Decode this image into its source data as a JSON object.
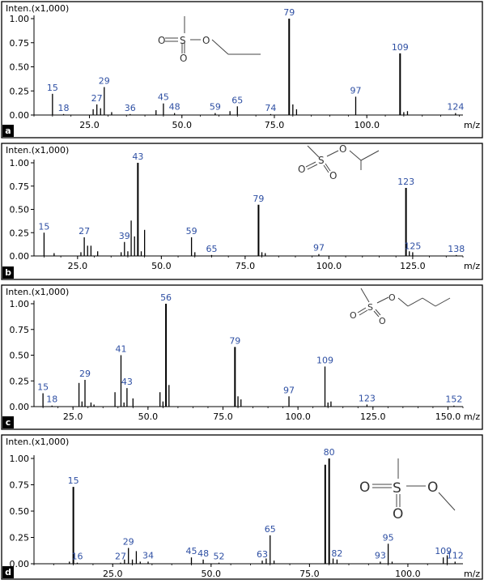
{
  "chart_data": [
    {
      "type": "bar",
      "panel_label": "a",
      "ylabel": "Inten.(x1,000)",
      "xlabel": "m/z",
      "xlim": [
        10,
        126
      ],
      "ylim": [
        0,
        1.0
      ],
      "yticks": [
        "0.00",
        "0.25",
        "0.50",
        "0.75",
        "1.00"
      ],
      "xticks": [
        "25.0",
        "50.0",
        "75.0",
        "100.0"
      ],
      "xtick_values": [
        25,
        50,
        75,
        100
      ],
      "structure": "methyl-ethyl-sulfonate",
      "peaks": [
        {
          "mz": 15,
          "i": 0.22,
          "label": "15"
        },
        {
          "mz": 18,
          "i": 0.01,
          "label": "18"
        },
        {
          "mz": 26,
          "i": 0.06
        },
        {
          "mz": 27,
          "i": 0.11,
          "label": "27"
        },
        {
          "mz": 28,
          "i": 0.07
        },
        {
          "mz": 29,
          "i": 0.29,
          "label": "29"
        },
        {
          "mz": 31,
          "i": 0.03
        },
        {
          "mz": 36,
          "i": 0.01,
          "label": "36"
        },
        {
          "mz": 43,
          "i": 0.05
        },
        {
          "mz": 45,
          "i": 0.12,
          "label": "45"
        },
        {
          "mz": 48,
          "i": 0.02,
          "label": "48"
        },
        {
          "mz": 59,
          "i": 0.02,
          "label": "59"
        },
        {
          "mz": 63,
          "i": 0.04
        },
        {
          "mz": 65,
          "i": 0.09,
          "label": "65"
        },
        {
          "mz": 74,
          "i": 0.01,
          "label": "74"
        },
        {
          "mz": 79,
          "i": 1.0,
          "label": "79"
        },
        {
          "mz": 80,
          "i": 0.11
        },
        {
          "mz": 81,
          "i": 0.06
        },
        {
          "mz": 97,
          "i": 0.19,
          "label": "97"
        },
        {
          "mz": 109,
          "i": 0.64,
          "label": "109"
        },
        {
          "mz": 110,
          "i": 0.03
        },
        {
          "mz": 111,
          "i": 0.04
        },
        {
          "mz": 124,
          "i": 0.02,
          "label": "124"
        }
      ]
    },
    {
      "type": "bar",
      "panel_label": "b",
      "ylabel": "Inten.(x1,000)",
      "xlabel": "m/z",
      "xlim": [
        12,
        140
      ],
      "ylim": [
        0,
        1.0
      ],
      "yticks": [
        "0.00",
        "0.25",
        "0.50",
        "0.75",
        "1.00"
      ],
      "xticks": [
        "25.0",
        "50.0",
        "75.0",
        "100.0",
        "125.0"
      ],
      "xtick_values": [
        25,
        50,
        75,
        100,
        125
      ],
      "structure": "methyl-isopropyl-sulfonate",
      "peaks": [
        {
          "mz": 15,
          "i": 0.25,
          "label": "15"
        },
        {
          "mz": 18,
          "i": 0.03
        },
        {
          "mz": 26,
          "i": 0.04
        },
        {
          "mz": 27,
          "i": 0.2,
          "label": "27"
        },
        {
          "mz": 28,
          "i": 0.11
        },
        {
          "mz": 29,
          "i": 0.11
        },
        {
          "mz": 31,
          "i": 0.05
        },
        {
          "mz": 38,
          "i": 0.04
        },
        {
          "mz": 39,
          "i": 0.15,
          "label": "39"
        },
        {
          "mz": 40,
          "i": 0.05
        },
        {
          "mz": 41,
          "i": 0.38
        },
        {
          "mz": 42,
          "i": 0.21
        },
        {
          "mz": 43,
          "i": 1.0,
          "label": "43"
        },
        {
          "mz": 44,
          "i": 0.05
        },
        {
          "mz": 45,
          "i": 0.28
        },
        {
          "mz": 59,
          "i": 0.2,
          "label": "59"
        },
        {
          "mz": 60,
          "i": 0.04
        },
        {
          "mz": 65,
          "i": 0.01,
          "label": "65"
        },
        {
          "mz": 79,
          "i": 0.55,
          "label": "79"
        },
        {
          "mz": 80,
          "i": 0.04
        },
        {
          "mz": 81,
          "i": 0.03
        },
        {
          "mz": 97,
          "i": 0.02,
          "label": "97"
        },
        {
          "mz": 123,
          "i": 0.73,
          "label": "123"
        },
        {
          "mz": 124,
          "i": 0.05
        },
        {
          "mz": 125,
          "i": 0.04,
          "label": "125"
        },
        {
          "mz": 138,
          "i": 0.01,
          "label": "138"
        }
      ]
    },
    {
      "type": "bar",
      "panel_label": "c",
      "ylabel": "Inten.(x1,000)",
      "xlabel": "m/z",
      "xlim": [
        12,
        155
      ],
      "ylim": [
        0,
        1.0
      ],
      "yticks": [
        "0.00",
        "0.25",
        "0.50",
        "0.75",
        "1.00"
      ],
      "xticks": [
        "25.0",
        "50.0",
        "75.0",
        "100.0",
        "125.0",
        "150.0"
      ],
      "xtick_values": [
        25,
        50,
        75,
        100,
        125,
        150
      ],
      "structure": "methyl-butyl-sulfonate",
      "peaks": [
        {
          "mz": 15,
          "i": 0.13,
          "label": "15"
        },
        {
          "mz": 18,
          "i": 0.01,
          "label": "18"
        },
        {
          "mz": 27,
          "i": 0.23
        },
        {
          "mz": 28,
          "i": 0.05
        },
        {
          "mz": 29,
          "i": 0.26,
          "label": "29"
        },
        {
          "mz": 31,
          "i": 0.04
        },
        {
          "mz": 32,
          "i": 0.02
        },
        {
          "mz": 39,
          "i": 0.14
        },
        {
          "mz": 41,
          "i": 0.5,
          "label": "41"
        },
        {
          "mz": 42,
          "i": 0.04
        },
        {
          "mz": 43,
          "i": 0.18,
          "label": "43"
        },
        {
          "mz": 45,
          "i": 0.08
        },
        {
          "mz": 54,
          "i": 0.14
        },
        {
          "mz": 55,
          "i": 0.05
        },
        {
          "mz": 56,
          "i": 1.0,
          "label": "56"
        },
        {
          "mz": 57,
          "i": 0.21
        },
        {
          "mz": 79,
          "i": 0.58,
          "label": "79"
        },
        {
          "mz": 80,
          "i": 0.1
        },
        {
          "mz": 81,
          "i": 0.07
        },
        {
          "mz": 97,
          "i": 0.1,
          "label": "97"
        },
        {
          "mz": 109,
          "i": 0.39,
          "label": "109"
        },
        {
          "mz": 110,
          "i": 0.04
        },
        {
          "mz": 111,
          "i": 0.05
        },
        {
          "mz": 123,
          "i": 0.02,
          "label": "123"
        },
        {
          "mz": 152,
          "i": 0.01,
          "label": "152"
        }
      ]
    },
    {
      "type": "bar",
      "panel_label": "d",
      "ylabel": "Inten.(x1,000)",
      "xlabel": "m/z",
      "xlim": [
        5,
        114
      ],
      "ylim": [
        0,
        1.0
      ],
      "yticks": [
        "0.00",
        "0.25",
        "0.50",
        "0.75",
        "1.00"
      ],
      "xticks": [
        "25.0",
        "50.0",
        "75.0",
        "100.0"
      ],
      "xtick_values": [
        25,
        50,
        75,
        100
      ],
      "structure": "dimethyl-sulfonate",
      "peaks": [
        {
          "mz": 14,
          "i": 0.02
        },
        {
          "mz": 15,
          "i": 0.73,
          "label": "15"
        },
        {
          "mz": 16,
          "i": 0.01,
          "label": "16"
        },
        {
          "mz": 27,
          "i": 0.01,
          "label": "27"
        },
        {
          "mz": 28,
          "i": 0.04
        },
        {
          "mz": 29,
          "i": 0.15,
          "label": "29"
        },
        {
          "mz": 30,
          "i": 0.04
        },
        {
          "mz": 31,
          "i": 0.12
        },
        {
          "mz": 32,
          "i": 0.02
        },
        {
          "mz": 34,
          "i": 0.02,
          "label": "34"
        },
        {
          "mz": 45,
          "i": 0.06,
          "label": "45"
        },
        {
          "mz": 48,
          "i": 0.04,
          "label": "48"
        },
        {
          "mz": 52,
          "i": 0.01,
          "label": "52"
        },
        {
          "mz": 63,
          "i": 0.03,
          "label": "63"
        },
        {
          "mz": 64,
          "i": 0.05
        },
        {
          "mz": 65,
          "i": 0.27,
          "label": "65"
        },
        {
          "mz": 66,
          "i": 0.03
        },
        {
          "mz": 79,
          "i": 0.94
        },
        {
          "mz": 80,
          "i": 1.0,
          "label": "80"
        },
        {
          "mz": 81,
          "i": 0.05
        },
        {
          "mz": 82,
          "i": 0.04,
          "label": "82"
        },
        {
          "mz": 93,
          "i": 0.02,
          "label": "93"
        },
        {
          "mz": 95,
          "i": 0.19,
          "label": "95"
        },
        {
          "mz": 96,
          "i": 0.02
        },
        {
          "mz": 109,
          "i": 0.06,
          "label": "109"
        },
        {
          "mz": 110,
          "i": 0.08
        },
        {
          "mz": 112,
          "i": 0.02,
          "label": "112"
        }
      ]
    }
  ]
}
